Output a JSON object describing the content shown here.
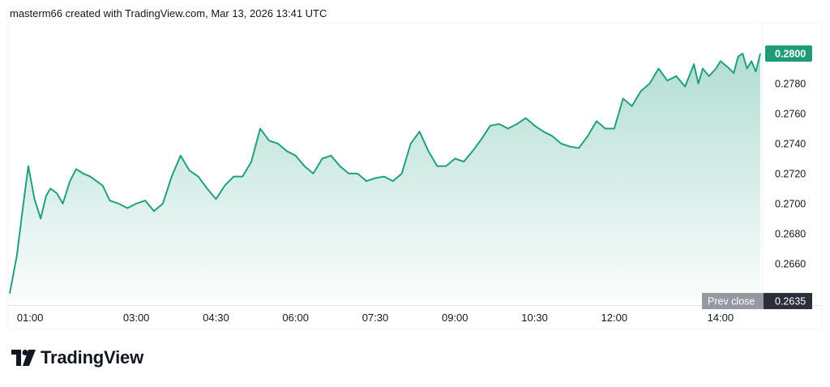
{
  "header": {
    "attribution": "masterm66 created with TradingView.com, Mar 13, 2026 13:41 UTC"
  },
  "footer": {
    "logo_text": "TradingView"
  },
  "colors": {
    "line": "#22a07f",
    "badge_bg": "#1f9b7a",
    "prev_close_label_bg": "#9598a1",
    "prev_close_value_bg": "#2a2e39"
  },
  "chart_data": {
    "type": "area",
    "x_ticks": [
      "01:00",
      "03:00",
      "04:30",
      "06:00",
      "07:30",
      "09:00",
      "10:30",
      "12:00",
      "14:00"
    ],
    "y_ticks": [
      "0.2660",
      "0.2680",
      "0.2700",
      "0.2720",
      "0.2740",
      "0.2760",
      "0.2780"
    ],
    "ylim": [
      0.26345,
      0.28195
    ],
    "grid": false,
    "last_price_label": "0.2800",
    "prev_close_label": "Prev close",
    "prev_close_value": "0.2635",
    "series": [
      {
        "x": [
          "00:37",
          "00:45",
          "00:52",
          "00:58",
          "01:05",
          "01:12",
          "01:18",
          "01:23",
          "01:30",
          "01:37",
          "01:45",
          "01:52",
          "02:00",
          "02:08",
          "02:15",
          "02:22",
          "02:30",
          "02:40",
          "02:50",
          "03:00",
          "03:10",
          "03:20",
          "03:30",
          "03:40",
          "03:50",
          "04:00",
          "04:10",
          "04:20",
          "04:30",
          "04:40",
          "04:50",
          "05:00",
          "05:10",
          "05:20",
          "05:30",
          "05:40",
          "05:50",
          "06:00",
          "06:10",
          "06:20",
          "06:30",
          "06:40",
          "06:50",
          "07:00",
          "07:10",
          "07:20",
          "07:30",
          "07:40",
          "07:50",
          "08:00",
          "08:10",
          "08:20",
          "08:30",
          "08:40",
          "08:50",
          "09:00",
          "09:10",
          "09:20",
          "09:30",
          "09:40",
          "09:50",
          "10:00",
          "10:10",
          "10:20",
          "10:30",
          "10:40",
          "10:50",
          "11:00",
          "11:10",
          "11:20",
          "11:30",
          "11:40",
          "11:50",
          "12:00",
          "12:10",
          "12:20",
          "12:30",
          "12:40",
          "12:50",
          "13:00",
          "13:10",
          "13:20",
          "13:30",
          "13:35",
          "13:40",
          "13:47",
          "13:55",
          "14:00",
          "14:10",
          "14:15",
          "14:20",
          "14:25",
          "14:30",
          "14:35",
          "14:40",
          "14:45"
        ],
        "values": [
          0.264,
          0.2665,
          0.2698,
          0.2725,
          0.2703,
          0.269,
          0.2705,
          0.271,
          0.2707,
          0.27,
          0.2715,
          0.2723,
          0.272,
          0.2718,
          0.2715,
          0.2712,
          0.2702,
          0.27,
          0.2697,
          0.27,
          0.2702,
          0.2695,
          0.27,
          0.2718,
          0.2732,
          0.2722,
          0.2718,
          0.271,
          0.2703,
          0.2712,
          0.2718,
          0.2718,
          0.2728,
          0.275,
          0.2742,
          0.274,
          0.2735,
          0.2732,
          0.2725,
          0.272,
          0.273,
          0.2732,
          0.2725,
          0.272,
          0.272,
          0.2715,
          0.2717,
          0.2718,
          0.2715,
          0.272,
          0.274,
          0.2748,
          0.2735,
          0.2725,
          0.2725,
          0.273,
          0.2728,
          0.2735,
          0.2743,
          0.2752,
          0.2753,
          0.275,
          0.2753,
          0.2757,
          0.2752,
          0.2748,
          0.2745,
          0.274,
          0.2738,
          0.2737,
          0.2745,
          0.2755,
          0.275,
          0.275,
          0.277,
          0.2765,
          0.2775,
          0.278,
          0.279,
          0.2782,
          0.2785,
          0.2778,
          0.2793,
          0.278,
          0.279,
          0.2785,
          0.279,
          0.2795,
          0.279,
          0.2787,
          0.2798,
          0.28,
          0.279,
          0.2795,
          0.2788,
          0.28
        ]
      }
    ]
  }
}
